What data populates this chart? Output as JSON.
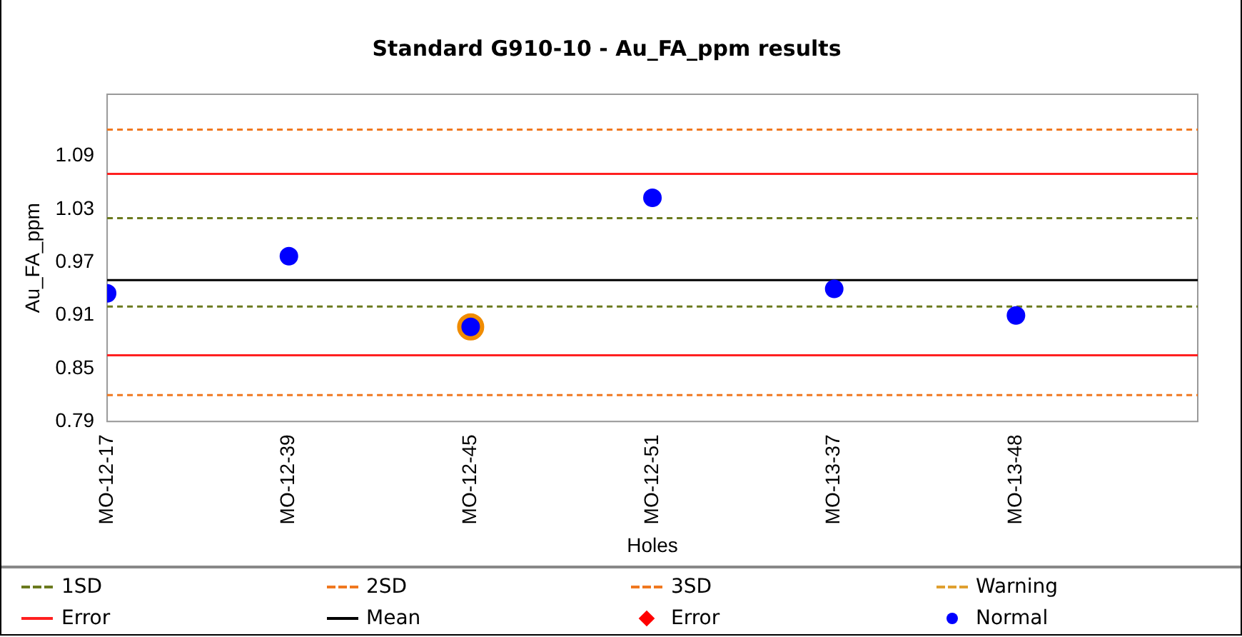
{
  "chart_data": {
    "type": "scatter",
    "title": "Standard G910-10 - Au_FA_ppm results",
    "xlabel": "Holes",
    "ylabel": "Au_FA_ppm",
    "categories": [
      "MO-12-17",
      "MO-12-39",
      "MO-12-45",
      "MO-12-51",
      "MO-13-37",
      "MO-13-48"
    ],
    "ylim": [
      0.79,
      1.16
    ],
    "yticks": [
      0.79,
      0.85,
      0.91,
      0.97,
      1.03,
      1.09
    ],
    "grid": false,
    "legend": "bottom",
    "series": [
      {
        "name": "1SD",
        "type": "line",
        "color": "#6b7a1e",
        "line_style": "dashed",
        "values": [
          null,
          null,
          null,
          null,
          null,
          null
        ]
      },
      {
        "name": "2SD",
        "type": "line",
        "color": "#f07820",
        "line_style": "dashed",
        "values": [
          null,
          null,
          null,
          null,
          null,
          null
        ]
      },
      {
        "name": "3SD",
        "type": "line",
        "color": "#f07820",
        "line_style": "dashed",
        "values": [
          null,
          null,
          null,
          null,
          null,
          null
        ]
      },
      {
        "name": "Warning",
        "type": "line",
        "color": "#e0a030",
        "line_style": "dashed",
        "values": [
          null,
          null,
          null,
          null,
          null,
          null
        ]
      },
      {
        "name": "Error",
        "type": "line",
        "color": "#ff2020",
        "line_style": "solid",
        "values": [
          null,
          null,
          null,
          null,
          null,
          null
        ]
      },
      {
        "name": "Mean",
        "type": "line",
        "color": "#000000",
        "line_style": "solid",
        "values": [
          null,
          null,
          null,
          null,
          null,
          null
        ]
      },
      {
        "name": "Error",
        "color": "#ff0000",
        "marker": "diamond",
        "values": [
          null,
          null,
          null,
          null,
          null,
          null
        ]
      },
      {
        "color": "#f08c00",
        "marker": "circle",
        "values": [
          null,
          null,
          0.897,
          null,
          null,
          null
        ]
      },
      {
        "name": "Normal",
        "color": "#0000ff",
        "marker": "circle",
        "values": [
          0.935,
          0.977,
          0.897,
          1.043,
          0.94,
          0.91
        ]
      }
    ],
    "ref_lines": [
      {
        "axis": "y",
        "value": 1.12,
        "color": "#f07820",
        "line_style": "dashed"
      },
      {
        "axis": "y",
        "value": 1.07,
        "color": "#ff2020",
        "line_style": "solid"
      },
      {
        "axis": "y",
        "value": 1.02,
        "color": "#6b7a1e",
        "line_style": "dashed"
      },
      {
        "axis": "y",
        "value": 0.95,
        "color": "#000000",
        "line_style": "solid"
      },
      {
        "axis": "y",
        "value": 0.92,
        "color": "#6b7a1e",
        "line_style": "dashed"
      },
      {
        "axis": "y",
        "value": 0.865,
        "color": "#ff2020",
        "line_style": "solid"
      },
      {
        "axis": "y",
        "value": 0.82,
        "color": "#f07820",
        "line_style": "dashed"
      }
    ]
  }
}
